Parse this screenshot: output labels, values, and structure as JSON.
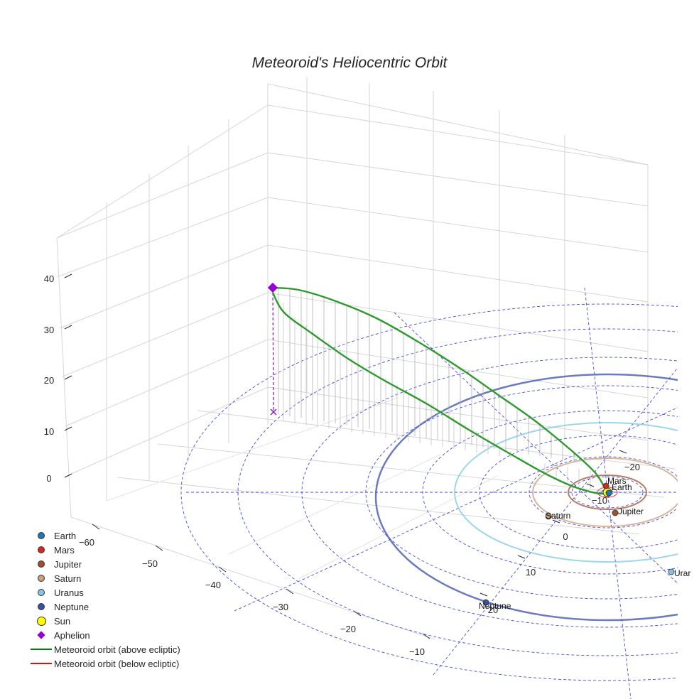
{
  "chart_data": {
    "type": "3d-line",
    "title": "Meteoroid's Heliocentric Orbit",
    "x_ticks": [
      "−60",
      "−50",
      "−40",
      "−30",
      "−20",
      "−10"
    ],
    "y_ticks": [
      "−20",
      "−10",
      "0",
      "10",
      "20"
    ],
    "z_ticks": [
      "0",
      "10",
      "20",
      "30",
      "40"
    ],
    "zlim": [
      0,
      40
    ],
    "planets": [
      {
        "name": "Earth",
        "label": "Earth",
        "color": "#1f77b4"
      },
      {
        "name": "Mars",
        "label": "Mars",
        "color": "#d62728"
      },
      {
        "name": "Jupiter",
        "label": "Jupiter",
        "color": "#a0522d"
      },
      {
        "name": "Saturn",
        "label": "Saturn",
        "color": "#c8a07a"
      },
      {
        "name": "Uranus",
        "label": "Urar",
        "color": "#7ec8e3"
      },
      {
        "name": "Neptune",
        "label": "Neptune",
        "color": "#3a4fa8"
      }
    ],
    "aphelion_z": 35,
    "legend": [
      {
        "label": "Earth",
        "kind": "dot",
        "color": "#1f77b4"
      },
      {
        "label": "Mars",
        "kind": "dot",
        "color": "#d62728"
      },
      {
        "label": "Jupiter",
        "kind": "dot",
        "color": "#a0522d"
      },
      {
        "label": "Saturn",
        "kind": "dot",
        "color": "#c8a07a"
      },
      {
        "label": "Uranus",
        "kind": "dot",
        "color": "#7ec8e3"
      },
      {
        "label": "Neptune",
        "kind": "dot",
        "color": "#3a4fa8"
      },
      {
        "label": "Sun",
        "kind": "sun",
        "color": "#ffff00"
      },
      {
        "label": "Aphelion",
        "kind": "diamond",
        "color": "#9400d3"
      },
      {
        "label": "Meteoroid orbit (above ecliptic)",
        "kind": "line",
        "color": "#008000"
      },
      {
        "label": "Meteoroid orbit (below ecliptic)",
        "kind": "line",
        "color": "#ff0000"
      }
    ]
  }
}
